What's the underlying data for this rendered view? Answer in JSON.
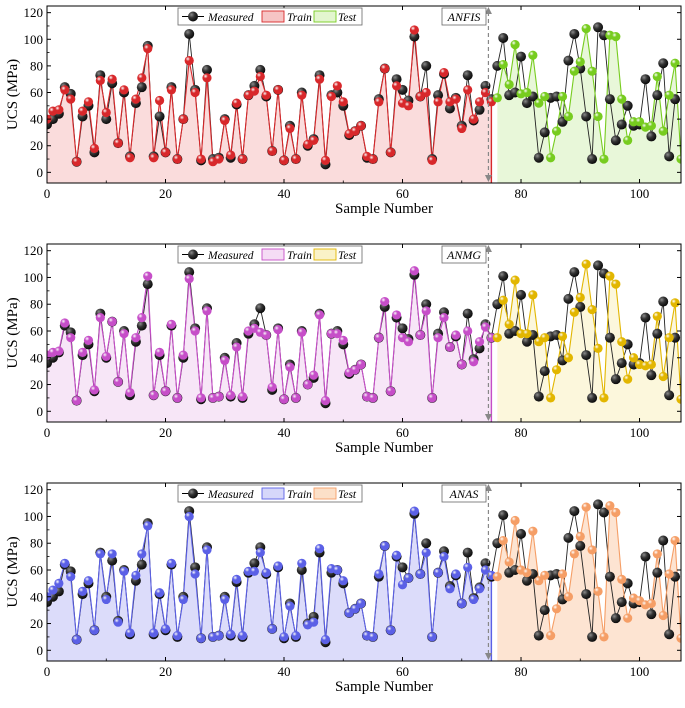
{
  "x": [
    0,
    1,
    2,
    3,
    4,
    5,
    6,
    7,
    8,
    9,
    10,
    11,
    12,
    13,
    14,
    15,
    16,
    17,
    18,
    19,
    20,
    21,
    22,
    23,
    24,
    25,
    26,
    27,
    28,
    29,
    30,
    31,
    32,
    33,
    34,
    35,
    36,
    37,
    38,
    39,
    40,
    41,
    42,
    43,
    44,
    45,
    46,
    47,
    48,
    49,
    50,
    51,
    52,
    53,
    54,
    55,
    56,
    57,
    58,
    59,
    60,
    61,
    62,
    63,
    64,
    65,
    66,
    67,
    68,
    69,
    70,
    71,
    72,
    73,
    74,
    75,
    76,
    77,
    78,
    79,
    80,
    81,
    82,
    83,
    84,
    85,
    86,
    87,
    88,
    89,
    90,
    91,
    92,
    93,
    94,
    95,
    96,
    97,
    98,
    99,
    100,
    101,
    102,
    103,
    104,
    105,
    106
  ],
  "measured": [
    36,
    40,
    44,
    64,
    59,
    8,
    42,
    50,
    15,
    73,
    40,
    67,
    22,
    60,
    12,
    52,
    64,
    95,
    12,
    42,
    15,
    64,
    10,
    40,
    104,
    62,
    9,
    77,
    10,
    11,
    40,
    11,
    51,
    10,
    58,
    65,
    77,
    57,
    16,
    62,
    9,
    35,
    10,
    60,
    20,
    25,
    73,
    6,
    58,
    60,
    50,
    28,
    31,
    35,
    11,
    10,
    55,
    78,
    15,
    70,
    62,
    54,
    102,
    57,
    80,
    10,
    58,
    74,
    48,
    56,
    35,
    73,
    39,
    47,
    65,
    55,
    80,
    101,
    58,
    60,
    87,
    52,
    57,
    11,
    30,
    56,
    57,
    38,
    84,
    104,
    78,
    42,
    10,
    109,
    103,
    55,
    24,
    36,
    50,
    35,
    36,
    70,
    27,
    58,
    82,
    12,
    55
  ],
  "train_sets": [
    {
      "name": "ANFIS",
      "color": "#d8282b",
      "values": [
        40,
        46,
        47,
        62,
        55,
        8,
        46,
        53,
        18,
        69,
        45,
        70,
        22,
        62,
        11,
        55,
        71,
        93,
        11,
        54,
        15,
        62,
        10,
        40,
        84,
        60,
        10,
        71,
        8,
        10,
        39,
        13,
        52,
        10,
        58,
        61,
        72,
        58,
        16,
        62,
        9,
        33,
        10,
        58,
        21,
        24,
        70,
        9,
        57,
        65,
        53,
        29,
        31,
        35,
        12,
        10,
        53,
        78,
        15,
        65,
        52,
        50,
        107,
        57,
        60,
        9,
        53,
        75,
        53,
        55,
        33,
        62,
        40,
        53,
        60,
        53
      ]
    },
    {
      "name": "ANMG",
      "color": "#c64ec8",
      "values": [
        42,
        44,
        45,
        66,
        55,
        8,
        44,
        53,
        16,
        70,
        41,
        67,
        22,
        58,
        14,
        55,
        70,
        101,
        12,
        44,
        15,
        65,
        10,
        42,
        99,
        60,
        10,
        75,
        10,
        11,
        38,
        12,
        48,
        11,
        60,
        62,
        59,
        57,
        18,
        61,
        9,
        33,
        10,
        59,
        20,
        27,
        72,
        8,
        58,
        58,
        53,
        29,
        31,
        35,
        11,
        10,
        55,
        82,
        15,
        72,
        55,
        52,
        105,
        57,
        75,
        10,
        55,
        70,
        48,
        57,
        35,
        60,
        37,
        52,
        63,
        55
      ]
    },
    {
      "name": "ANAS",
      "color": "#5b60e6",
      "values": [
        40,
        45,
        50,
        65,
        55,
        8,
        44,
        52,
        15,
        72,
        38,
        72,
        21,
        59,
        13,
        56,
        72,
        93,
        13,
        43,
        16,
        65,
        11,
        38,
        100,
        57,
        9,
        75,
        10,
        11,
        38,
        12,
        53,
        11,
        59,
        59,
        73,
        58,
        16,
        63,
        10,
        33,
        11,
        65,
        19,
        21,
        76,
        8,
        61,
        60,
        52,
        28,
        31,
        35,
        11,
        10,
        57,
        78,
        15,
        71,
        49,
        54,
        104,
        57,
        73,
        10,
        58,
        70,
        46,
        57,
        35,
        62,
        38,
        46,
        60,
        56
      ]
    }
  ],
  "test_sets": [
    {
      "color": "#77cc1f",
      "values": [
        56,
        81,
        66,
        96,
        59,
        60,
        88,
        52,
        57,
        11,
        31,
        57,
        42,
        76,
        83,
        108,
        76,
        42,
        10,
        103,
        102,
        55,
        24,
        38,
        38,
        34,
        35,
        72,
        31,
        58,
        82,
        10,
        70
      ]
    },
    {
      "color": "#e2b600",
      "values": [
        55,
        83,
        65,
        98,
        58,
        58,
        87,
        52,
        55,
        10,
        31,
        56,
        40,
        74,
        85,
        110,
        76,
        47,
        10,
        101,
        95,
        52,
        24,
        40,
        35,
        34,
        35,
        71,
        26,
        55,
        81,
        9,
        54
      ]
    },
    {
      "color": "#f59e66",
      "values": [
        55,
        82,
        66,
        97,
        60,
        58,
        89,
        52,
        56,
        11,
        31,
        57,
        40,
        72,
        85,
        107,
        75,
        44,
        10,
        108,
        103,
        53,
        24,
        39,
        37,
        34,
        35,
        72,
        26,
        57,
        82,
        9,
        54
      ]
    }
  ],
  "split_x": 74.5,
  "xlim": [
    0,
    107
  ],
  "ylim": [
    -8,
    125
  ],
  "xticks": [
    0,
    20,
    40,
    60,
    80,
    100
  ],
  "yticks": [
    0,
    20,
    40,
    60,
    80,
    100,
    120
  ],
  "xlabel": "Sample Number",
  "ylabel": "UCS (MPa)",
  "legend": {
    "measured": "Measured",
    "train": "Train",
    "test": "Test"
  },
  "panels": [
    {
      "tag": "ANFIS",
      "train_fill": "#fadcdc",
      "test_fill": "#e8f7d9",
      "train_color": "#d8282b",
      "test_color": "#77cc1f",
      "train_legend_fill": "#f6c4c4",
      "test_legend_fill": "#e3f6cf"
    },
    {
      "tag": "ANMG",
      "train_fill": "#f7e6f7",
      "test_fill": "#fcf7dc",
      "train_color": "#c64ec8",
      "test_color": "#e2b600",
      "train_legend_fill": "#f5dcf5",
      "test_legend_fill": "#faf2c8"
    },
    {
      "tag": "ANAS",
      "train_fill": "#dcdcfa",
      "test_fill": "#fde4d2",
      "train_color": "#5b60e6",
      "test_color": "#f59e66",
      "train_legend_fill": "#d6d7fa",
      "test_legend_fill": "#fce0c8"
    }
  ]
}
